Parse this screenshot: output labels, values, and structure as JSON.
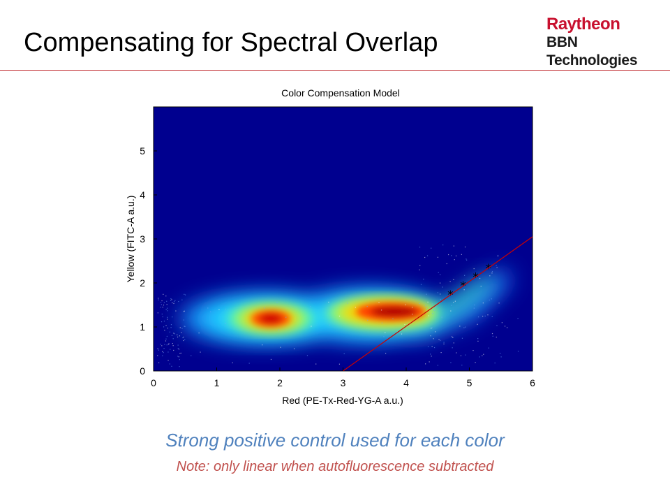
{
  "slide": {
    "title": "Compensating for Spectral Overlap",
    "logo": {
      "line1": "Raytheon",
      "line2": "BBN Technologies"
    },
    "subtitle": "Strong positive control used for each color",
    "note": "Note: only linear when autofluorescence subtracted"
  },
  "chart_data": {
    "type": "heatmap",
    "title": "Color Compensation Model",
    "xlabel": "Red (PE-Tx-Red-YG-A a.u.)",
    "ylabel": "Yellow (FITC-A a.u.)",
    "xlim": [
      0,
      6
    ],
    "ylim": [
      0,
      6
    ],
    "x_ticks": [
      "0",
      "1",
      "2",
      "3",
      "4",
      "5",
      "6"
    ],
    "y_ticks": [
      "0",
      "1",
      "2",
      "3",
      "4",
      "5"
    ],
    "colormap": "jet",
    "background_color": "#00008f",
    "density_peaks": [
      {
        "x": 1.85,
        "y": 1.2,
        "intensity": "high"
      },
      {
        "x": 3.75,
        "y": 1.35,
        "intensity": "high"
      }
    ],
    "series": [
      {
        "type": "scatter",
        "marker": "*",
        "color": "#000000",
        "points": [
          [
            4.7,
            1.75
          ],
          [
            4.9,
            1.95
          ],
          [
            5.1,
            2.15
          ],
          [
            5.3,
            2.35
          ]
        ]
      },
      {
        "type": "line",
        "color": "#cc0000",
        "points": [
          [
            3.0,
            0.0
          ],
          [
            6.0,
            3.05
          ]
        ]
      }
    ]
  }
}
